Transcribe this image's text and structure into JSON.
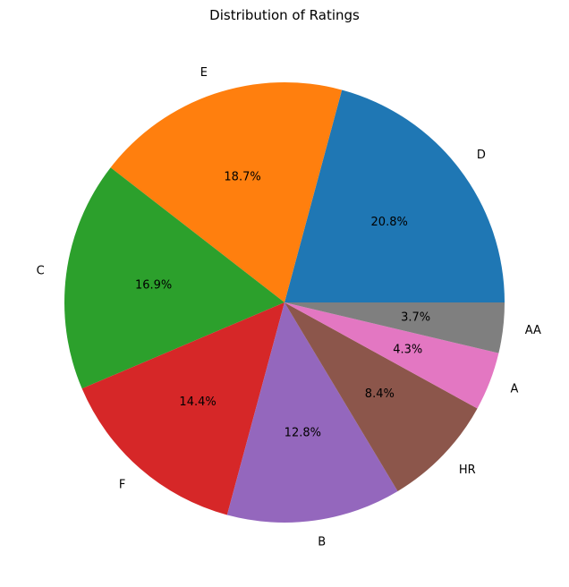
{
  "chart_data": {
    "type": "pie",
    "title": "Distribution of Ratings",
    "start_angle_deg": 0,
    "direction": "counterclockwise",
    "slices": [
      {
        "label": "D",
        "percent": 20.8,
        "pct_label": "20.8%",
        "color": "#1f77b4"
      },
      {
        "label": "E",
        "percent": 18.7,
        "pct_label": "18.7%",
        "color": "#ff7f0e"
      },
      {
        "label": "C",
        "percent": 16.9,
        "pct_label": "16.9%",
        "color": "#2ca02c"
      },
      {
        "label": "F",
        "percent": 14.4,
        "pct_label": "14.4%",
        "color": "#d62728"
      },
      {
        "label": "B",
        "percent": 12.8,
        "pct_label": "12.8%",
        "color": "#9467bd"
      },
      {
        "label": "HR",
        "percent": 8.4,
        "pct_label": "8.4%",
        "color": "#8c564b"
      },
      {
        "label": "A",
        "percent": 4.3,
        "pct_label": "4.3%",
        "color": "#e377c2"
      },
      {
        "label": "AA",
        "percent": 3.7,
        "pct_label": "3.7%",
        "color": "#7f7f7f"
      }
    ]
  }
}
